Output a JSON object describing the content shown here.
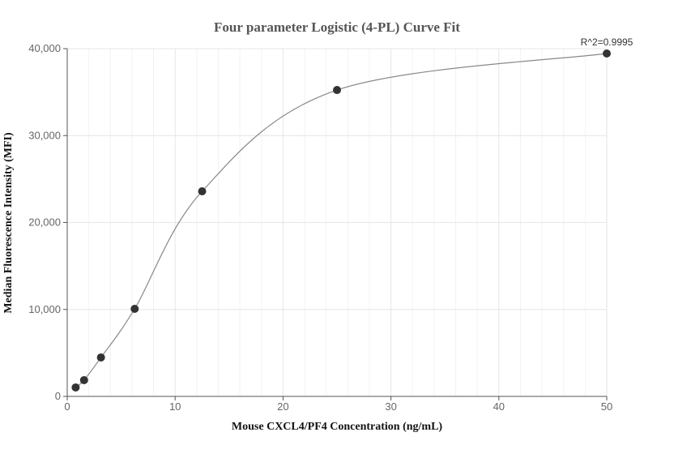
{
  "chart_data": {
    "type": "scatter",
    "title": "Four parameter Logistic (4-PL) Curve Fit",
    "xlabel": "Mouse CXCL4/PF4 Concentration (ng/mL)",
    "ylabel": "Median Fluorescence Intensity (MFI)",
    "xlim": [
      0,
      50
    ],
    "ylim": [
      0,
      40000
    ],
    "xticks": [
      "0",
      "10",
      "20",
      "30",
      "40",
      "50"
    ],
    "yticks": [
      "0",
      "10,000",
      "20,000",
      "30,000",
      "40,000"
    ],
    "grid": true,
    "annotation": "R^2=0.9995",
    "points": [
      {
        "x": 0.78,
        "y": 1030
      },
      {
        "x": 1.56,
        "y": 1870
      },
      {
        "x": 3.125,
        "y": 4480
      },
      {
        "x": 6.25,
        "y": 10070
      },
      {
        "x": 12.5,
        "y": 23590
      },
      {
        "x": 25,
        "y": 35240
      },
      {
        "x": 50,
        "y": 39440
      }
    ],
    "fit_curve": "4-PL",
    "colors": {
      "points": "#333333",
      "curve": "#888888",
      "grid": "#e6e6e6"
    }
  }
}
